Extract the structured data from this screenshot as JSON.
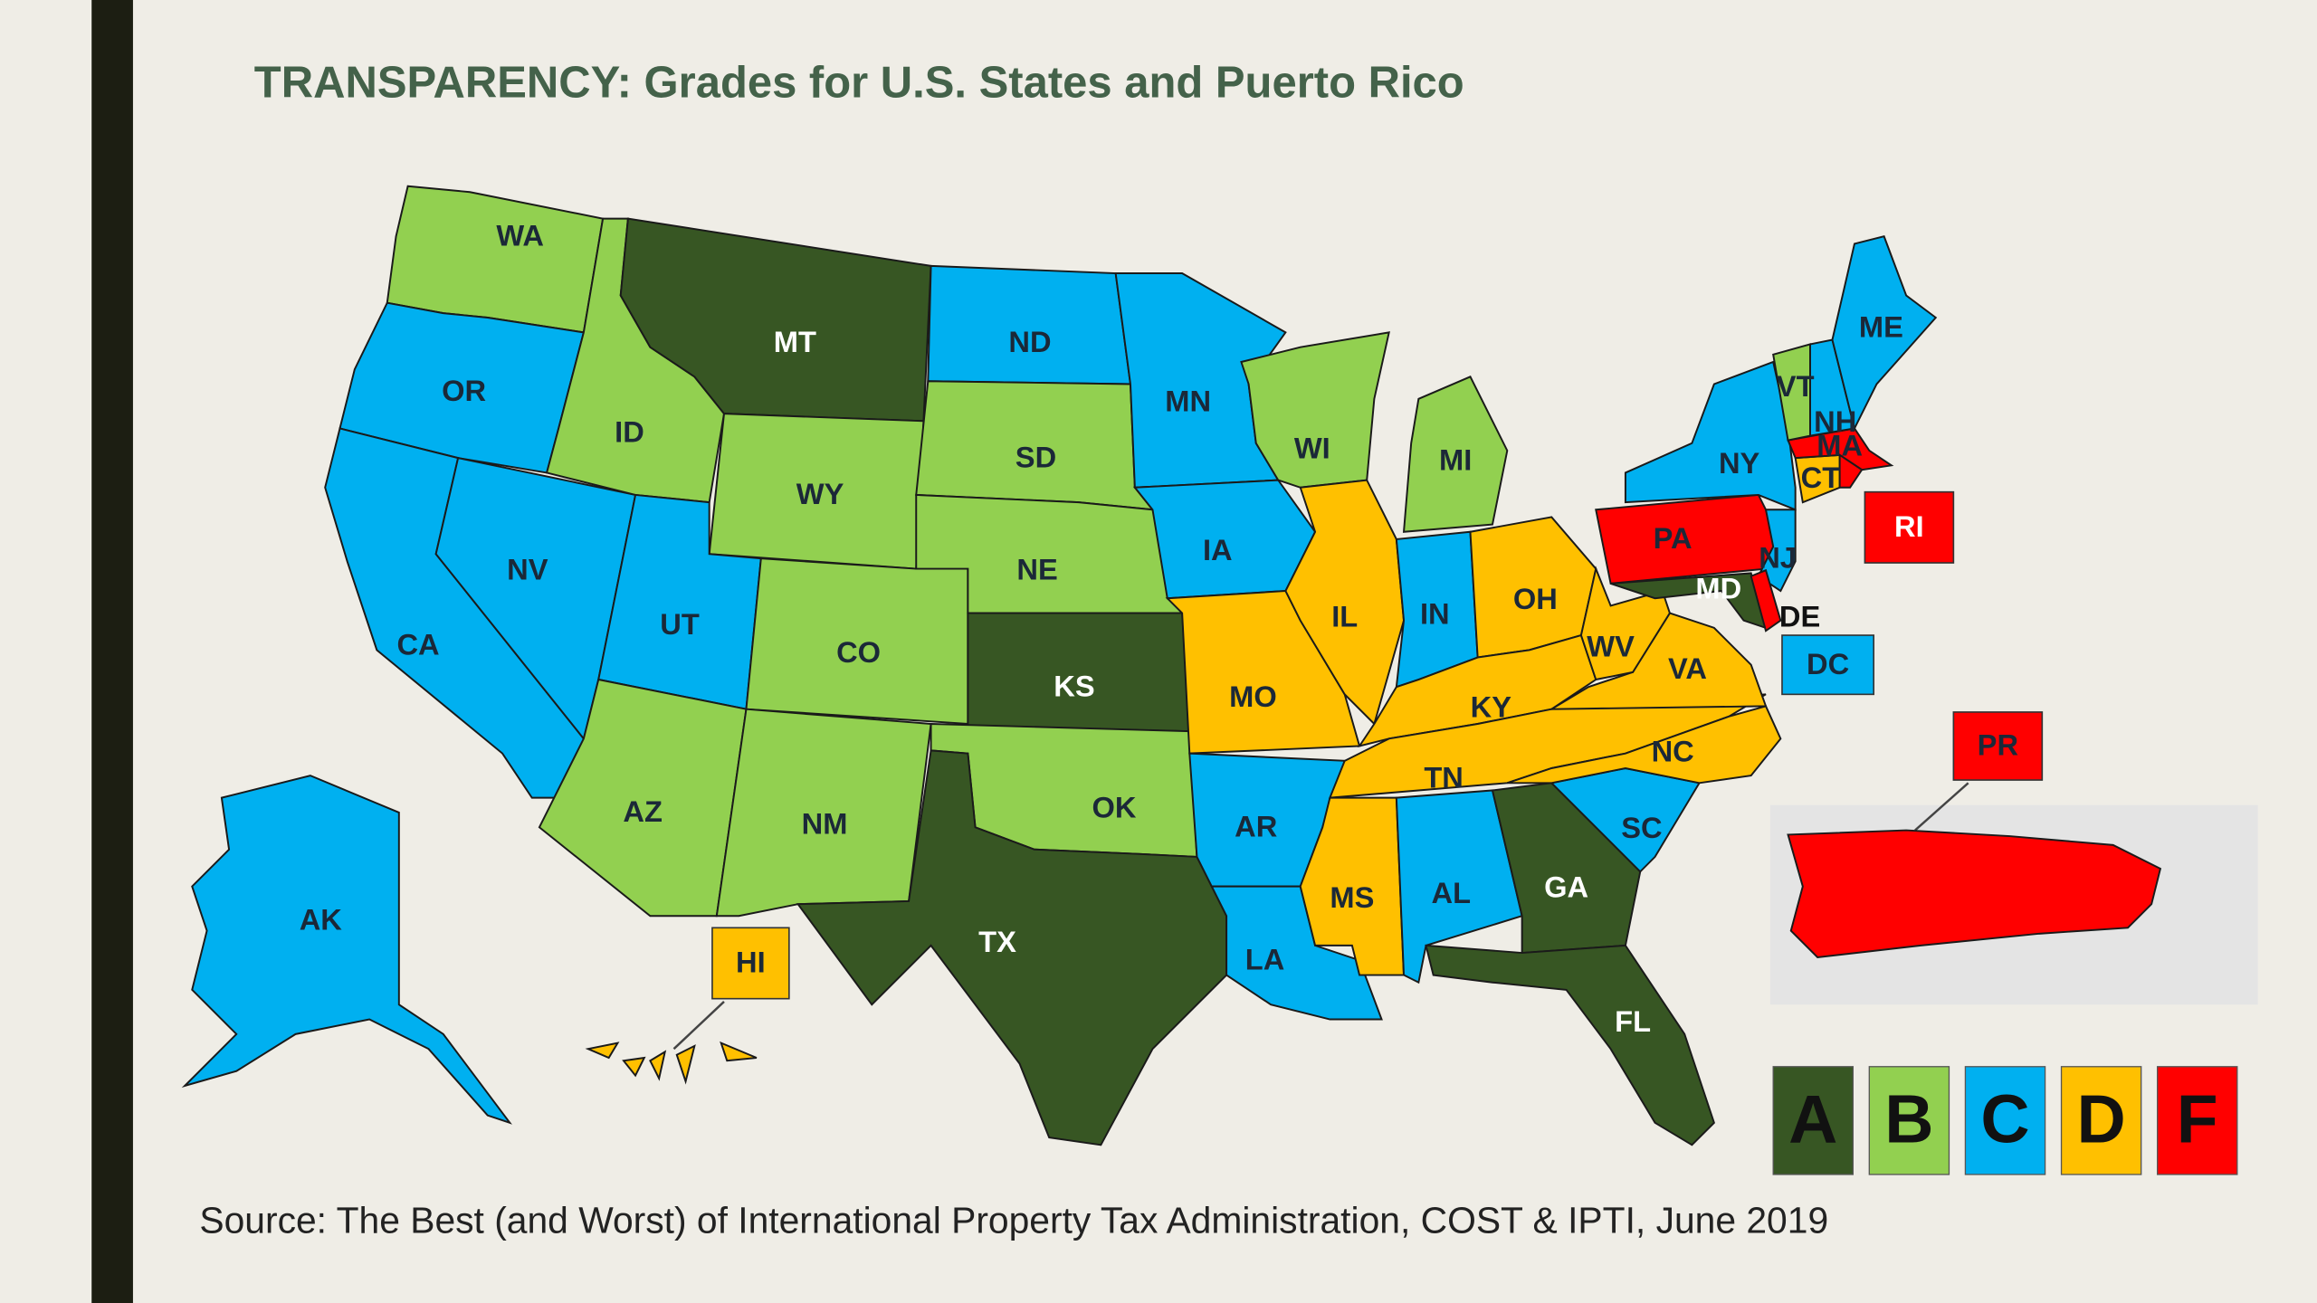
{
  "header": {
    "title": "TRANSPARENCY: Grades for U.S. States and Puerto Rico"
  },
  "states": [
    {
      "label": "WA",
      "grade": "B"
    },
    {
      "label": "OR",
      "grade": "C"
    },
    {
      "label": "CA",
      "grade": "C"
    },
    {
      "label": "NV",
      "grade": "C"
    },
    {
      "label": "ID",
      "grade": "B"
    },
    {
      "label": "MT",
      "grade": "A"
    },
    {
      "label": "WY",
      "grade": "B"
    },
    {
      "label": "UT",
      "grade": "C"
    },
    {
      "label": "CO",
      "grade": "B"
    },
    {
      "label": "AZ",
      "grade": "B"
    },
    {
      "label": "NM",
      "grade": "B"
    },
    {
      "label": "ND",
      "grade": "C"
    },
    {
      "label": "SD",
      "grade": "B"
    },
    {
      "label": "NE",
      "grade": "B"
    },
    {
      "label": "KS",
      "grade": "A"
    },
    {
      "label": "OK",
      "grade": "B"
    },
    {
      "label": "TX",
      "grade": "A"
    },
    {
      "label": "MN",
      "grade": "C"
    },
    {
      "label": "IA",
      "grade": "C"
    },
    {
      "label": "MO",
      "grade": "D"
    },
    {
      "label": "AR",
      "grade": "C"
    },
    {
      "label": "LA",
      "grade": "C"
    },
    {
      "label": "WI",
      "grade": "B"
    },
    {
      "label": "MI",
      "grade": "B"
    },
    {
      "label": "IL",
      "grade": "D"
    },
    {
      "label": "IN",
      "grade": "C"
    },
    {
      "label": "OH",
      "grade": "D"
    },
    {
      "label": "KY",
      "grade": "D"
    },
    {
      "label": "TN",
      "grade": "D"
    },
    {
      "label": "MS",
      "grade": "D"
    },
    {
      "label": "AL",
      "grade": "C"
    },
    {
      "label": "GA",
      "grade": "A"
    },
    {
      "label": "FL",
      "grade": "A"
    },
    {
      "label": "SC",
      "grade": "C"
    },
    {
      "label": "NC",
      "grade": "D"
    },
    {
      "label": "VA",
      "grade": "D"
    },
    {
      "label": "WV",
      "grade": "D"
    },
    {
      "label": "PA",
      "grade": "F"
    },
    {
      "label": "NY",
      "grade": "C"
    },
    {
      "label": "NJ",
      "grade": "C"
    },
    {
      "label": "MD",
      "grade": "A"
    },
    {
      "label": "DE",
      "grade": "F"
    },
    {
      "label": "CT",
      "grade": "D"
    },
    {
      "label": "MA",
      "grade": "F"
    },
    {
      "label": "RI",
      "grade": "F"
    },
    {
      "label": "VT",
      "grade": "B"
    },
    {
      "label": "NH",
      "grade": "C"
    },
    {
      "label": "ME",
      "grade": "C"
    },
    {
      "label": "AK",
      "grade": "C"
    },
    {
      "label": "HI",
      "grade": "D"
    },
    {
      "label": "DC",
      "grade": "C"
    },
    {
      "label": "PR",
      "grade": "F"
    }
  ],
  "legend": [
    {
      "grade": "A",
      "color": "#375623"
    },
    {
      "grade": "B",
      "color": "#92d050"
    },
    {
      "grade": "C",
      "color": "#00b0f0"
    },
    {
      "grade": "D",
      "color": "#ffc000"
    },
    {
      "grade": "F",
      "color": "#ff0000"
    }
  ],
  "source": "Source: The Best (and Worst) of International Property Tax Administration, COST & IPTI, June 2019"
}
